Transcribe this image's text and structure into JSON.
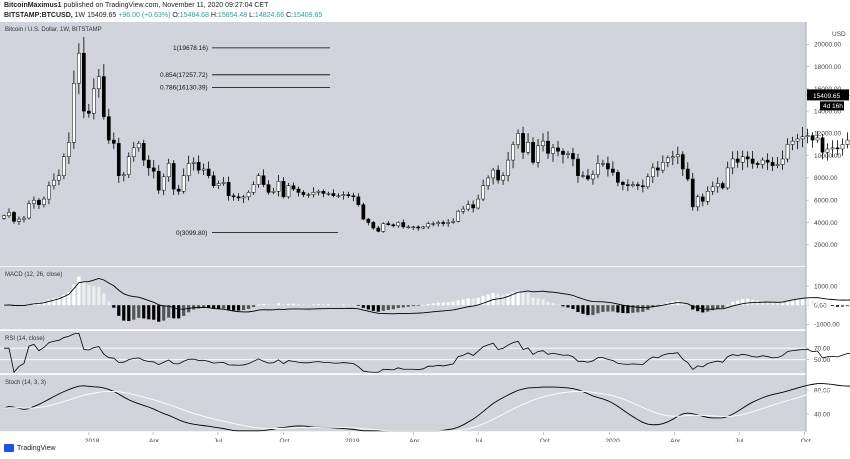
{
  "header": {
    "publisher": "BitcoinMaximus1",
    "published_text": "published on TradingView.com, November 11, 2020 09:27:04 CET",
    "symbol": "BITSTAMP:BTCUSD,",
    "interval": "1W",
    "last": "15409.65",
    "change": "+96.00 (+0.63%)",
    "open_label": "O:",
    "open": "15484.68",
    "high_label": "H:",
    "high": "15854.48",
    "low_label": "L:",
    "low": "14824.66",
    "close_label": "C:",
    "close": "15409.65"
  },
  "footer": {
    "brand": "TradingView"
  },
  "colors": {
    "panel_bg": "#d1d4dc",
    "up": "#ffffff",
    "down": "#000000",
    "line": "#000000",
    "signal": "#ffffff"
  },
  "chart_data": [
    {
      "type": "candlestick",
      "pane_title": "Bitcoin / U.S. Dollar, 1W, BITSTAMP",
      "currency": "USD",
      "ylim": [
        0,
        22000
      ],
      "yticks": [
        2000,
        4000,
        6000,
        8000,
        10000,
        12000,
        14000,
        16000,
        18000,
        20000
      ],
      "y_tick_labels": [
        "2000.00",
        "4000.00",
        "6000.00",
        "8000.00",
        "10000.00",
        "12000.00",
        "14000.00",
        "16000.00",
        "18000.00",
        "20000.00"
      ],
      "x_tick_labels": [
        "2018",
        "Apr",
        "Jul",
        "Oct",
        "2019",
        "Apr",
        "Jul",
        "Oct",
        "2020",
        "Apr",
        "Jul",
        "Oct",
        "20"
      ],
      "x_tick_dates": [
        "2018-01-01",
        "2018-04-01",
        "2018-07-01",
        "2018-10-01",
        "2019-01-01",
        "2019-04-01",
        "2019-07-01",
        "2019-10-01",
        "2020-01-01",
        "2020-04-01",
        "2020-07-01",
        "2020-10-01",
        "2021-01-01"
      ],
      "close_series": {
        "start": "2017-09-04",
        "interval": "1W",
        "values": [
          4600,
          4900,
          4100,
          4300,
          4400,
          5700,
          6000,
          5600,
          6100,
          7300,
          7800,
          8200,
          9900,
          11200,
          16500,
          19200,
          14000,
          13800,
          16000,
          17100,
          13500,
          11400,
          11100,
          8200,
          8300,
          9900,
          10700,
          11100,
          9600,
          8900,
          8600,
          6900,
          8100,
          9300,
          7000,
          6800,
          8200,
          9300,
          9400,
          8700,
          8800,
          8200,
          7300,
          7500,
          7600,
          6400,
          6300,
          6200,
          6300,
          6700,
          7400,
          8200,
          7400,
          6700,
          6800,
          7700,
          6300,
          7300,
          7000,
          6700,
          6500,
          6500,
          6700,
          6800,
          6600,
          6600,
          6400,
          6400,
          6500,
          6400,
          6300,
          5600,
          4300,
          4000,
          3500,
          3200,
          3900,
          3800,
          3700,
          4000,
          3600,
          3600,
          3600,
          3500,
          3600,
          3900,
          3900,
          4000,
          3900,
          4000,
          4100,
          5000,
          5200,
          5600,
          5300,
          6100,
          7300,
          8000,
          8700,
          7800,
          8200,
          9600,
          11000,
          12000,
          10300,
          11200,
          9400,
          10900,
          11300,
          10200,
          10700,
          10400,
          10100,
          10200,
          9700,
          8200,
          8200,
          7900,
          8300,
          9300,
          9300,
          8800,
          8500,
          7600,
          7400,
          7300,
          7400,
          7300,
          7200,
          8100,
          8900,
          8700,
          9400,
          9800,
          9900,
          10100,
          8800,
          7900,
          5400,
          6300,
          5900,
          6800,
          7200,
          7500,
          7100,
          8900,
          9700,
          9400,
          9900,
          9700,
          9300,
          9200,
          9600,
          9400,
          9100,
          9200,
          9700,
          11000,
          11300,
          11500,
          11700,
          11800,
          11400,
          11600,
          10300,
          10600,
          10700,
          10600,
          11000,
          11400,
          11500,
          12900,
          13800,
          15300,
          15409.65
        ]
      },
      "last_price_label": "15409.65",
      "countdown_label": "4d 16h",
      "fibonacci": [
        {
          "label": "1(19678.16)",
          "price": 19678.16
        },
        {
          "label": "0.854(17257.72)",
          "price": 17257.72
        },
        {
          "label": "0.786(16130.39)",
          "price": 16130.39
        },
        {
          "label": "0(3099.80)",
          "price": 3099.8
        }
      ]
    },
    {
      "type": "histogram",
      "pane_title": "MACD (12, 26, close)",
      "ylim": [
        -1300,
        2000
      ],
      "yticks": [
        1000,
        0,
        -1000
      ],
      "y_tick_labels": [
        "1000.00",
        "0.00",
        "-1000.00"
      ]
    },
    {
      "type": "line",
      "pane_title": "RSI (14, close)",
      "ylim": [
        25,
        100
      ],
      "yticks": [
        70,
        50
      ],
      "y_tick_labels": [
        "70.00",
        "50.00"
      ]
    },
    {
      "type": "line",
      "pane_title": "Stoch (14, 3, 3)",
      "ylim": [
        10,
        105
      ],
      "yticks": [
        80,
        40
      ],
      "y_tick_labels": [
        "80.00",
        "40.00"
      ]
    }
  ]
}
